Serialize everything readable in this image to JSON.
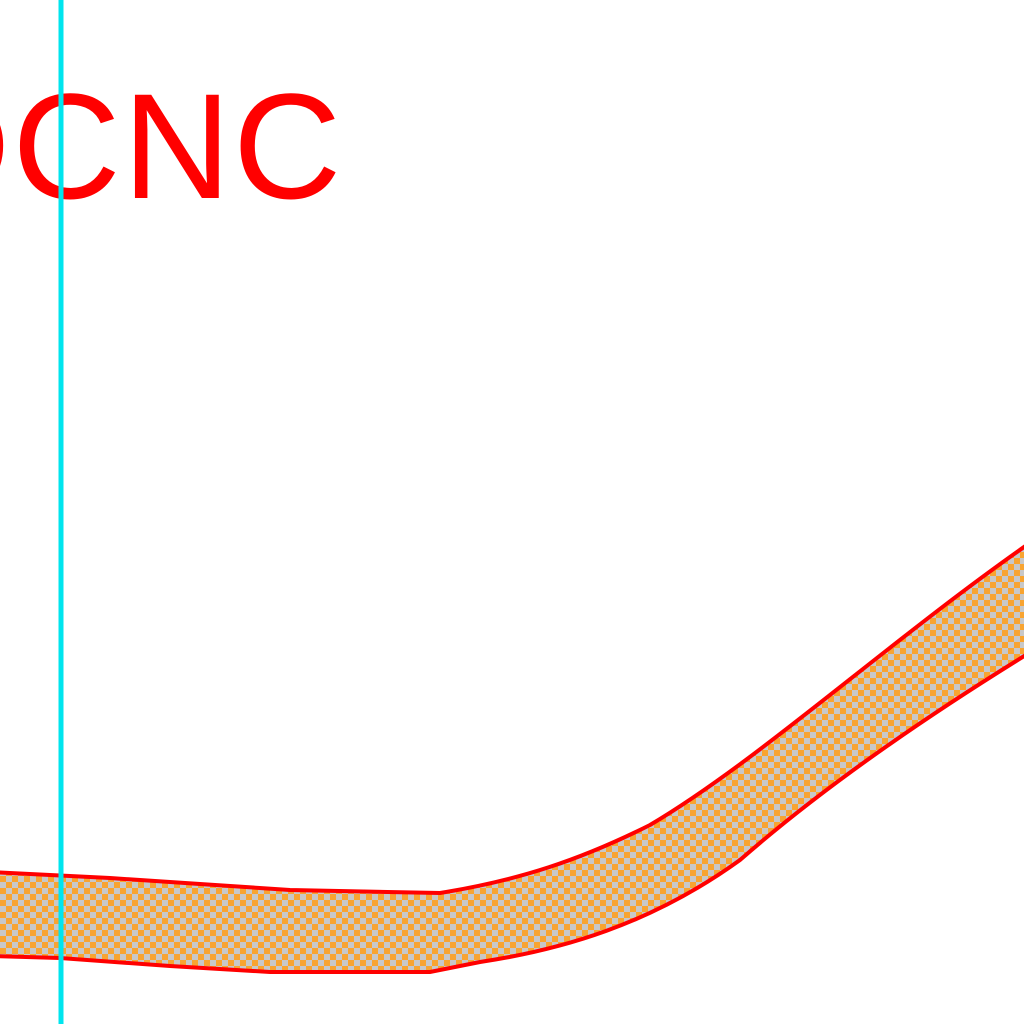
{
  "label": {
    "text": "DCNC"
  },
  "colors": {
    "background": "#ffffff",
    "label": "#ff0000",
    "band_outline": "#ff0000",
    "band_fill_a": "#f8a431",
    "band_fill_b": "#c8c8c8",
    "guide_line": "#00e5ee"
  }
}
